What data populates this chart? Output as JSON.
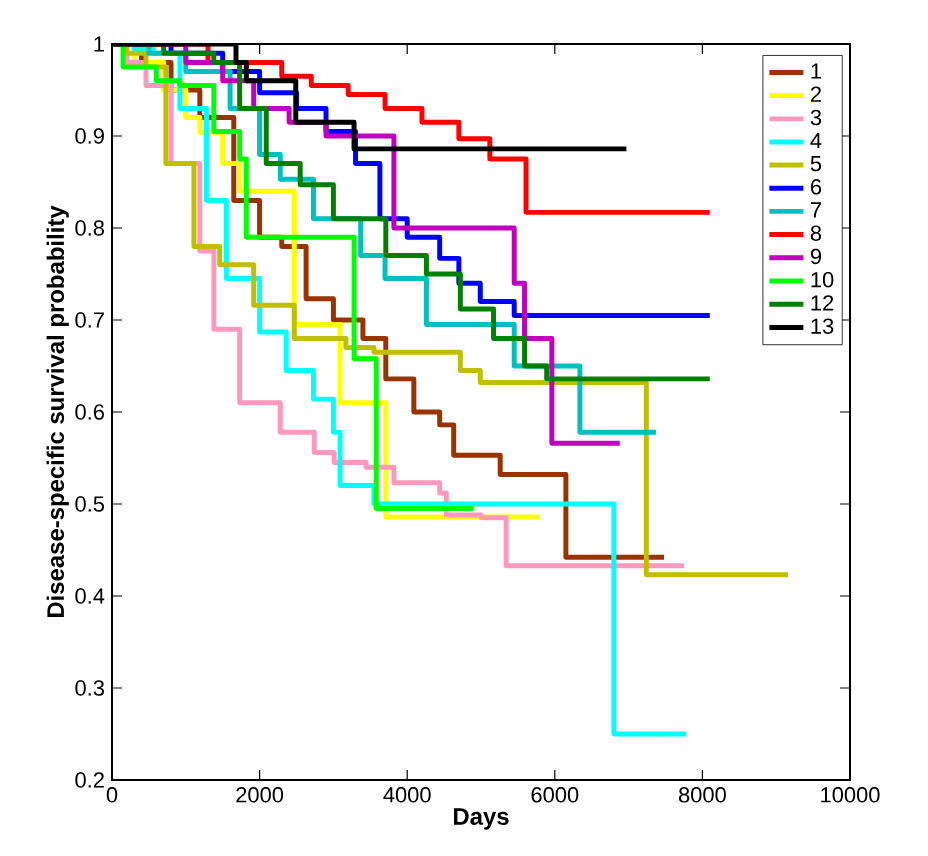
{
  "chart_data": {
    "type": "step",
    "xlabel": "Days",
    "ylabel": "Disease-specific survival probability",
    "xlim": [
      0,
      10000
    ],
    "ylim": [
      0.2,
      1
    ],
    "xticks": [
      0,
      2000,
      4000,
      6000,
      8000,
      10000
    ],
    "yticks": [
      0.2,
      0.3,
      0.4,
      0.5,
      0.6,
      0.7,
      0.8,
      0.9,
      1
    ],
    "legend": "top right",
    "marker": "none",
    "line_style": "solid",
    "series": [
      {
        "name": "1",
        "color": "#993300",
        "x": [
          0,
          400,
          800,
          1190,
          1650,
          2000,
          2300,
          2630,
          3000,
          3400,
          3710,
          4090,
          4440,
          4630,
          5260,
          6150,
          7480
        ],
        "values": [
          1,
          0.98,
          0.95,
          0.92,
          0.83,
          0.79,
          0.78,
          0.723,
          0.7,
          0.68,
          0.636,
          0.6,
          0.586,
          0.553,
          0.532,
          0.442,
          0.442
        ]
      },
      {
        "name": "2",
        "color": "#ffff00",
        "x": [
          0,
          300,
          700,
          1000,
          1190,
          1500,
          1730,
          2470,
          3090,
          3710,
          5800
        ],
        "values": [
          1,
          0.98,
          0.95,
          0.92,
          0.904,
          0.87,
          0.84,
          0.695,
          0.61,
          0.486,
          0.486
        ]
      },
      {
        "name": "3",
        "color": "#ff99bb",
        "x": [
          0,
          200,
          460,
          800,
          1190,
          1380,
          1730,
          2280,
          2740,
          3010,
          3440,
          3820,
          4440,
          4530,
          5000,
          5340,
          7750
        ],
        "values": [
          1,
          0.98,
          0.955,
          0.87,
          0.775,
          0.69,
          0.61,
          0.578,
          0.556,
          0.545,
          0.54,
          0.523,
          0.512,
          0.488,
          0.485,
          0.433,
          0.433
        ]
      },
      {
        "name": "4",
        "color": "#00ffff",
        "x": [
          0,
          300,
          560,
          920,
          1280,
          1550,
          2000,
          2360,
          2730,
          3000,
          3090,
          3550,
          6800,
          7780
        ],
        "values": [
          1,
          0.995,
          0.99,
          0.93,
          0.83,
          0.745,
          0.687,
          0.645,
          0.614,
          0.578,
          0.52,
          0.5,
          0.25,
          0.25
        ]
      },
      {
        "name": "5",
        "color": "#bfbf00",
        "x": [
          0,
          200,
          460,
          730,
          1110,
          1460,
          1920,
          2470,
          3170,
          3550,
          4720,
          4990,
          7240,
          9160
        ],
        "values": [
          1,
          0.99,
          0.975,
          0.87,
          0.78,
          0.76,
          0.716,
          0.68,
          0.67,
          0.665,
          0.645,
          0.632,
          0.423,
          0.423
        ]
      },
      {
        "name": "6",
        "color": "#0000ff",
        "x": [
          0,
          800,
          1500,
          2000,
          2500,
          2900,
          3300,
          3630,
          4000,
          4440,
          4700,
          4990,
          5450,
          8100
        ],
        "values": [
          1,
          0.99,
          0.97,
          0.947,
          0.93,
          0.905,
          0.87,
          0.81,
          0.79,
          0.767,
          0.74,
          0.72,
          0.705,
          0.705
        ]
      },
      {
        "name": "7",
        "color": "#00bfbf",
        "x": [
          0,
          500,
          1000,
          1600,
          2000,
          2280,
          2730,
          3370,
          3700,
          4260,
          5450,
          6340,
          7370
        ],
        "values": [
          1,
          0.99,
          0.97,
          0.93,
          0.88,
          0.853,
          0.81,
          0.77,
          0.745,
          0.695,
          0.65,
          0.578,
          0.578
        ]
      },
      {
        "name": "8",
        "color": "#ff0000",
        "x": [
          0,
          1300,
          2300,
          2700,
          3200,
          3700,
          4200,
          4700,
          5120,
          5610,
          8100
        ],
        "values": [
          1,
          0.98,
          0.965,
          0.955,
          0.945,
          0.93,
          0.915,
          0.897,
          0.875,
          0.817,
          0.817
        ]
      },
      {
        "name": "9",
        "color": "#bf00bf",
        "x": [
          0,
          1000,
          1500,
          1920,
          2400,
          2900,
          3820,
          5450,
          5590,
          5960,
          6880
        ],
        "values": [
          1,
          0.98,
          0.96,
          0.93,
          0.915,
          0.9,
          0.8,
          0.74,
          0.68,
          0.566,
          0.566
        ]
      },
      {
        "name": "10",
        "color": "#00ff00",
        "x": [
          0,
          150,
          600,
          920,
          1380,
          1730,
          1820,
          3280,
          3580,
          4900
        ],
        "values": [
          1,
          0.975,
          0.96,
          0.955,
          0.905,
          0.875,
          0.79,
          0.658,
          0.495,
          0.495
        ]
      },
      {
        "name": "12",
        "color": "#008000",
        "x": [
          0,
          700,
          1380,
          1730,
          2090,
          2550,
          3000,
          3710,
          4260,
          4720,
          5170,
          5590,
          5890,
          8100
        ],
        "values": [
          1,
          0.99,
          0.98,
          0.93,
          0.87,
          0.847,
          0.81,
          0.77,
          0.75,
          0.712,
          0.68,
          0.65,
          0.636,
          0.636
        ]
      },
      {
        "name": "13",
        "color": "#000000",
        "x": [
          0,
          1680,
          1820,
          2490,
          3280,
          6970
        ],
        "values": [
          1,
          0.98,
          0.96,
          0.915,
          0.886,
          0.886
        ]
      }
    ]
  }
}
